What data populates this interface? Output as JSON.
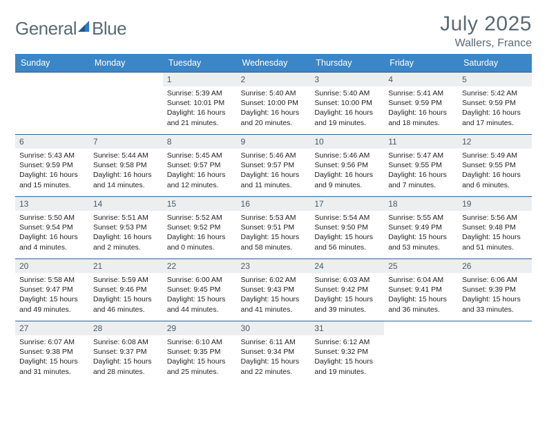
{
  "brand": {
    "part1": "General",
    "part2": "Blue"
  },
  "title": "July 2025",
  "location": "Wallers, France",
  "colors": {
    "header_bg": "#3b86c6",
    "daynum_bg": "#eceef0",
    "rule": "#2f5f8f",
    "brand_gray": "#5a6a74",
    "brand_blue": "#2f7bbf",
    "text": "#222222",
    "page_bg": "#ffffff"
  },
  "fonts": {
    "title_size_pt": 22,
    "location_size_pt": 12,
    "dow_size_pt": 9,
    "daynum_size_pt": 9,
    "body_size_pt": 8
  },
  "days_of_week": [
    "Sunday",
    "Monday",
    "Tuesday",
    "Wednesday",
    "Thursday",
    "Friday",
    "Saturday"
  ],
  "weeks": [
    [
      null,
      null,
      {
        "n": "1",
        "sunrise": "Sunrise: 5:39 AM",
        "sunset": "Sunset: 10:01 PM",
        "day1": "Daylight: 16 hours",
        "day2": "and 21 minutes."
      },
      {
        "n": "2",
        "sunrise": "Sunrise: 5:40 AM",
        "sunset": "Sunset: 10:00 PM",
        "day1": "Daylight: 16 hours",
        "day2": "and 20 minutes."
      },
      {
        "n": "3",
        "sunrise": "Sunrise: 5:40 AM",
        "sunset": "Sunset: 10:00 PM",
        "day1": "Daylight: 16 hours",
        "day2": "and 19 minutes."
      },
      {
        "n": "4",
        "sunrise": "Sunrise: 5:41 AM",
        "sunset": "Sunset: 9:59 PM",
        "day1": "Daylight: 16 hours",
        "day2": "and 18 minutes."
      },
      {
        "n": "5",
        "sunrise": "Sunrise: 5:42 AM",
        "sunset": "Sunset: 9:59 PM",
        "day1": "Daylight: 16 hours",
        "day2": "and 17 minutes."
      }
    ],
    [
      {
        "n": "6",
        "sunrise": "Sunrise: 5:43 AM",
        "sunset": "Sunset: 9:59 PM",
        "day1": "Daylight: 16 hours",
        "day2": "and 15 minutes."
      },
      {
        "n": "7",
        "sunrise": "Sunrise: 5:44 AM",
        "sunset": "Sunset: 9:58 PM",
        "day1": "Daylight: 16 hours",
        "day2": "and 14 minutes."
      },
      {
        "n": "8",
        "sunrise": "Sunrise: 5:45 AM",
        "sunset": "Sunset: 9:57 PM",
        "day1": "Daylight: 16 hours",
        "day2": "and 12 minutes."
      },
      {
        "n": "9",
        "sunrise": "Sunrise: 5:46 AM",
        "sunset": "Sunset: 9:57 PM",
        "day1": "Daylight: 16 hours",
        "day2": "and 11 minutes."
      },
      {
        "n": "10",
        "sunrise": "Sunrise: 5:46 AM",
        "sunset": "Sunset: 9:56 PM",
        "day1": "Daylight: 16 hours",
        "day2": "and 9 minutes."
      },
      {
        "n": "11",
        "sunrise": "Sunrise: 5:47 AM",
        "sunset": "Sunset: 9:55 PM",
        "day1": "Daylight: 16 hours",
        "day2": "and 7 minutes."
      },
      {
        "n": "12",
        "sunrise": "Sunrise: 5:49 AM",
        "sunset": "Sunset: 9:55 PM",
        "day1": "Daylight: 16 hours",
        "day2": "and 6 minutes."
      }
    ],
    [
      {
        "n": "13",
        "sunrise": "Sunrise: 5:50 AM",
        "sunset": "Sunset: 9:54 PM",
        "day1": "Daylight: 16 hours",
        "day2": "and 4 minutes."
      },
      {
        "n": "14",
        "sunrise": "Sunrise: 5:51 AM",
        "sunset": "Sunset: 9:53 PM",
        "day1": "Daylight: 16 hours",
        "day2": "and 2 minutes."
      },
      {
        "n": "15",
        "sunrise": "Sunrise: 5:52 AM",
        "sunset": "Sunset: 9:52 PM",
        "day1": "Daylight: 16 hours",
        "day2": "and 0 minutes."
      },
      {
        "n": "16",
        "sunrise": "Sunrise: 5:53 AM",
        "sunset": "Sunset: 9:51 PM",
        "day1": "Daylight: 15 hours",
        "day2": "and 58 minutes."
      },
      {
        "n": "17",
        "sunrise": "Sunrise: 5:54 AM",
        "sunset": "Sunset: 9:50 PM",
        "day1": "Daylight: 15 hours",
        "day2": "and 56 minutes."
      },
      {
        "n": "18",
        "sunrise": "Sunrise: 5:55 AM",
        "sunset": "Sunset: 9:49 PM",
        "day1": "Daylight: 15 hours",
        "day2": "and 53 minutes."
      },
      {
        "n": "19",
        "sunrise": "Sunrise: 5:56 AM",
        "sunset": "Sunset: 9:48 PM",
        "day1": "Daylight: 15 hours",
        "day2": "and 51 minutes."
      }
    ],
    [
      {
        "n": "20",
        "sunrise": "Sunrise: 5:58 AM",
        "sunset": "Sunset: 9:47 PM",
        "day1": "Daylight: 15 hours",
        "day2": "and 49 minutes."
      },
      {
        "n": "21",
        "sunrise": "Sunrise: 5:59 AM",
        "sunset": "Sunset: 9:46 PM",
        "day1": "Daylight: 15 hours",
        "day2": "and 46 minutes."
      },
      {
        "n": "22",
        "sunrise": "Sunrise: 6:00 AM",
        "sunset": "Sunset: 9:45 PM",
        "day1": "Daylight: 15 hours",
        "day2": "and 44 minutes."
      },
      {
        "n": "23",
        "sunrise": "Sunrise: 6:02 AM",
        "sunset": "Sunset: 9:43 PM",
        "day1": "Daylight: 15 hours",
        "day2": "and 41 minutes."
      },
      {
        "n": "24",
        "sunrise": "Sunrise: 6:03 AM",
        "sunset": "Sunset: 9:42 PM",
        "day1": "Daylight: 15 hours",
        "day2": "and 39 minutes."
      },
      {
        "n": "25",
        "sunrise": "Sunrise: 6:04 AM",
        "sunset": "Sunset: 9:41 PM",
        "day1": "Daylight: 15 hours",
        "day2": "and 36 minutes."
      },
      {
        "n": "26",
        "sunrise": "Sunrise: 6:06 AM",
        "sunset": "Sunset: 9:39 PM",
        "day1": "Daylight: 15 hours",
        "day2": "and 33 minutes."
      }
    ],
    [
      {
        "n": "27",
        "sunrise": "Sunrise: 6:07 AM",
        "sunset": "Sunset: 9:38 PM",
        "day1": "Daylight: 15 hours",
        "day2": "and 31 minutes."
      },
      {
        "n": "28",
        "sunrise": "Sunrise: 6:08 AM",
        "sunset": "Sunset: 9:37 PM",
        "day1": "Daylight: 15 hours",
        "day2": "and 28 minutes."
      },
      {
        "n": "29",
        "sunrise": "Sunrise: 6:10 AM",
        "sunset": "Sunset: 9:35 PM",
        "day1": "Daylight: 15 hours",
        "day2": "and 25 minutes."
      },
      {
        "n": "30",
        "sunrise": "Sunrise: 6:11 AM",
        "sunset": "Sunset: 9:34 PM",
        "day1": "Daylight: 15 hours",
        "day2": "and 22 minutes."
      },
      {
        "n": "31",
        "sunrise": "Sunrise: 6:12 AM",
        "sunset": "Sunset: 9:32 PM",
        "day1": "Daylight: 15 hours",
        "day2": "and 19 minutes."
      },
      null,
      null
    ]
  ]
}
